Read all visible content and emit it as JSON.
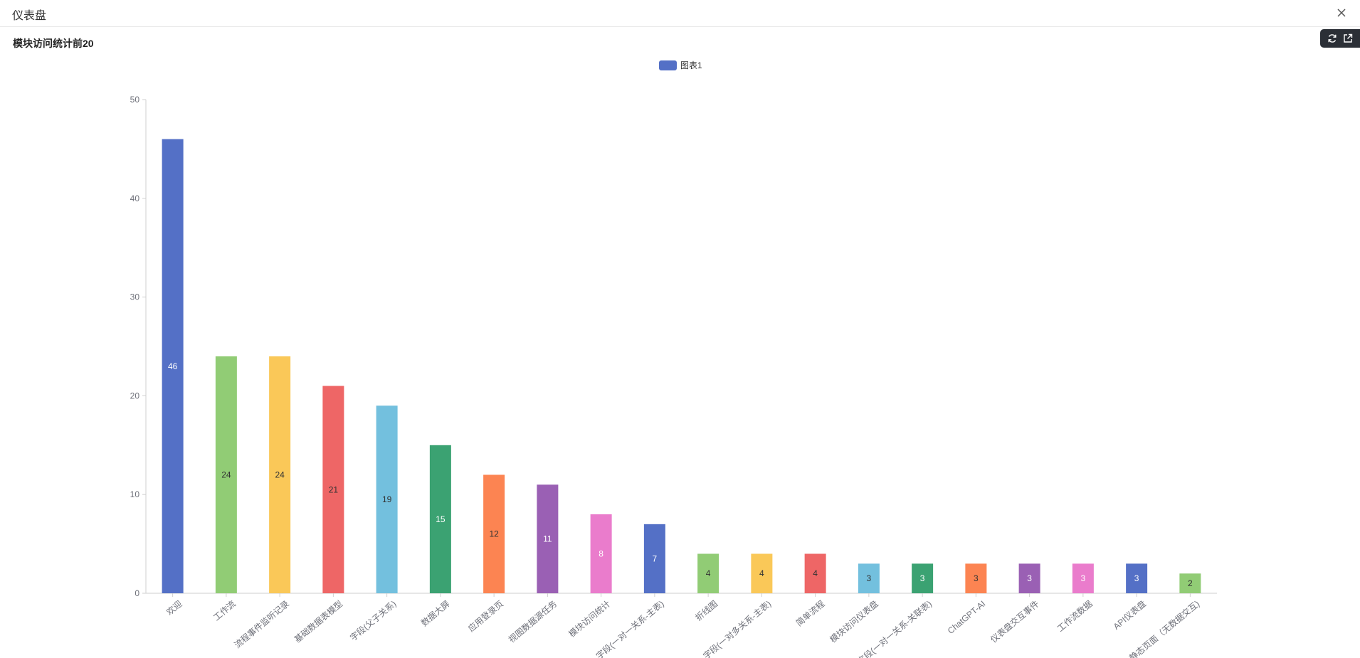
{
  "app": {
    "title": "仪表盘"
  },
  "card": {
    "title": "模块访问统计前20"
  },
  "toolbar": {
    "icons": [
      "refresh-icon",
      "external-link-icon"
    ]
  },
  "colors": [
    "#5470c6",
    "#91cc75",
    "#fac858",
    "#ee6666",
    "#73c0de",
    "#3ba272",
    "#fc8452",
    "#9a60b4",
    "#ea7ccc"
  ],
  "chart_data": {
    "type": "bar",
    "legend": {
      "name": "图表1",
      "position": "top-center"
    },
    "categories": [
      "欢迎",
      "工作流",
      "流程事件监听记录",
      "基础数据表模型",
      "字段(父子关系)",
      "数据大屏",
      "应用登录页",
      "视图数据源任务",
      "模块访问统计",
      "字段(一对一关系-主表)",
      "折线图",
      "字段(一对多关系-主表)",
      "简单流程",
      "模块访问仪表盘",
      "字段(一对一关系-关联表)",
      "ChatGPT-AI",
      "仪表盘交互事件",
      "工作流数据",
      "API仪表盘",
      "静态页面（无数据交互)"
    ],
    "series": [
      {
        "name": "图表1",
        "values": [
          46,
          24,
          24,
          21,
          19,
          15,
          12,
          11,
          8,
          7,
          4,
          4,
          4,
          3,
          3,
          3,
          3,
          3,
          3,
          2
        ]
      }
    ],
    "ylim": [
      0,
      50
    ],
    "yticks": [
      0,
      10,
      20,
      30,
      40,
      50
    ],
    "grid": false,
    "data_labels": true
  }
}
